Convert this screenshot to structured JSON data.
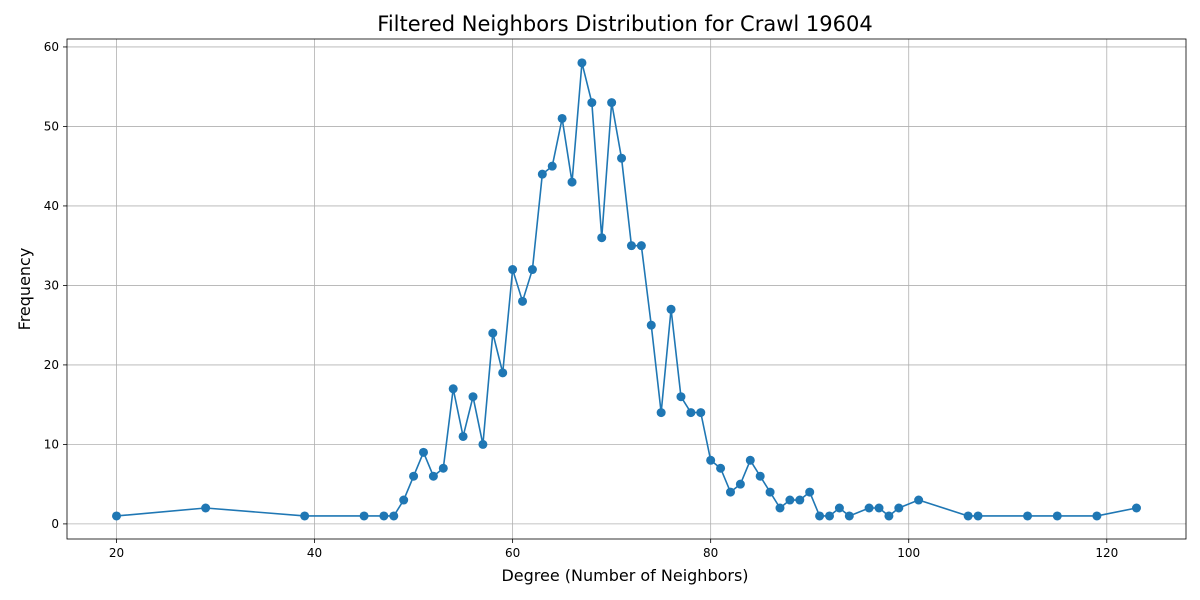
{
  "chart_data": {
    "type": "line",
    "title": "Filtered Neighbors Distribution for Crawl 19604",
    "xlabel": "Degree (Number of Neighbors)",
    "ylabel": "Frequency",
    "xlim": [
      15,
      128
    ],
    "ylim": [
      -1.9,
      61
    ],
    "xticks": [
      20,
      40,
      60,
      80,
      100,
      120
    ],
    "yticks": [
      0,
      10,
      20,
      30,
      40,
      50,
      60
    ],
    "grid": true,
    "color": "#1f77b4",
    "marker": "circle",
    "series": [
      {
        "x": [
          20,
          29,
          39,
          45,
          47,
          48,
          49,
          50,
          51,
          52,
          53,
          54,
          55,
          56,
          57,
          58,
          59,
          60,
          61,
          62,
          63,
          64,
          65,
          66,
          67,
          68,
          69,
          70,
          71,
          72,
          73,
          74,
          75,
          76,
          77,
          78,
          79,
          80,
          81,
          82,
          83,
          84,
          85,
          86,
          87,
          88,
          89,
          90,
          91,
          92,
          93,
          94,
          96,
          97,
          98,
          99,
          101,
          106,
          107,
          112,
          115,
          119,
          123
        ],
        "y": [
          1,
          2,
          1,
          1,
          1,
          1,
          3,
          6,
          9,
          6,
          7,
          17,
          11,
          16,
          10,
          24,
          19,
          32,
          28,
          32,
          44,
          45,
          51,
          43,
          58,
          53,
          36,
          53,
          46,
          35,
          35,
          25,
          14,
          27,
          16,
          14,
          14,
          8,
          7,
          4,
          5,
          8,
          6,
          4,
          2,
          3,
          3,
          4,
          1,
          1,
          2,
          1,
          2,
          2,
          1,
          2,
          3,
          1,
          1,
          1,
          1,
          1,
          2
        ]
      }
    ]
  }
}
